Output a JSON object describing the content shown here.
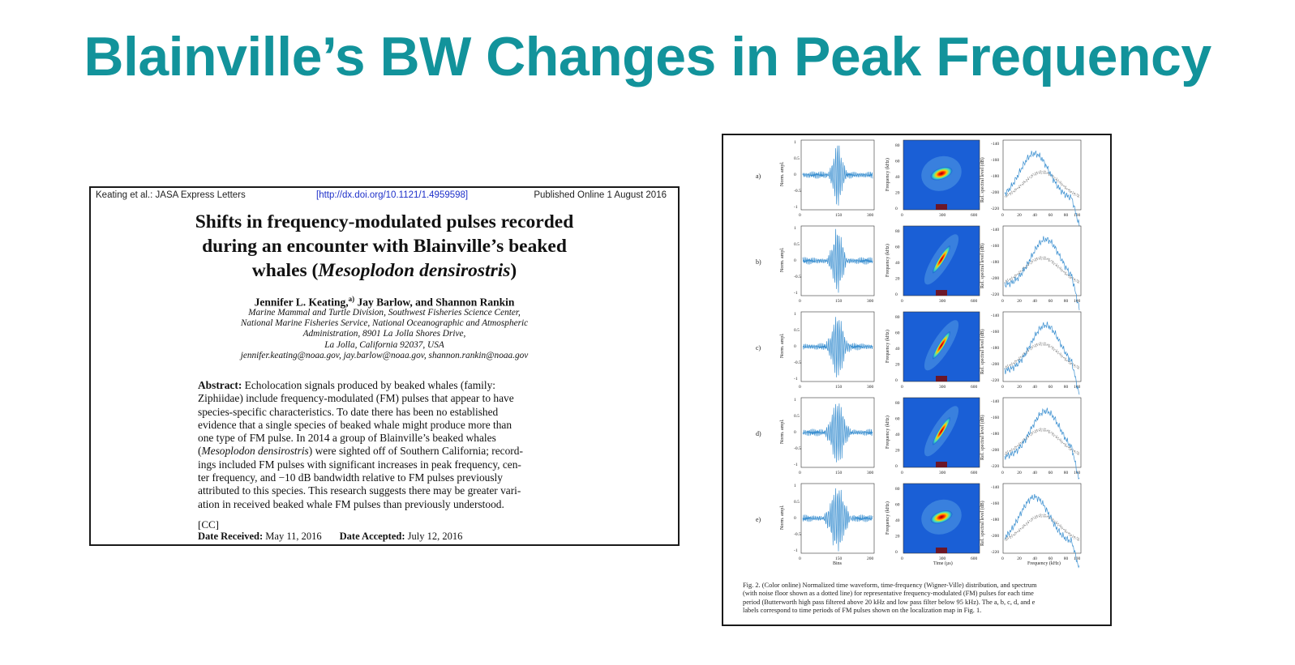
{
  "slide": {
    "title": "Blainville’s BW Changes in Peak Frequency"
  },
  "paper": {
    "journal": "Keating et al.: JASA Express Letters",
    "doi": "[http://dx.doi.org/10.1121/1.4959598]",
    "published": "Published Online  1 August 2016",
    "title_lines": [
      "Shifts in frequency-modulated pulses recorded",
      "during an encounter with Blainville’s beaked",
      "whales (Mesoplodon densirostris)"
    ],
    "authors": "Jennifer L. Keating,",
    "author_note": "a)",
    "authors_rest": " Jay Barlow, and Shannon Rankin",
    "affiliation_lines": [
      "Marine Mammal and Turtle Division, Southwest Fisheries Science Center,",
      "National Marine Fisheries Service, National Oceanographic and Atmospheric",
      "Administration, 8901 La Jolla Shores Drive,",
      "La Jolla, California 92037, USA",
      "jennifer.keating@noaa.gov, jay.barlow@noaa.gov, shannon.rankin@noaa.gov"
    ],
    "abstract_label": "Abstract:",
    "abstract_lines": [
      " Echolocation signals produced by beaked whales (family:",
      "Ziphiidae) include frequency-modulated (FM) pulses that appear to have",
      "species-specific characteristics. To date there has been no established",
      "evidence that a single species of beaked whale might produce more than",
      "one type of FM pulse. In 2014 a group of Blainville’s beaked whales",
      "(Mesoplodon densirostris) were sighted off of Southern California; record-",
      "ings included FM pulses with significant increases in peak frequency, cen-",
      "ter frequency, and −10 dB bandwidth relative to FM pulses previously",
      "attributed to this species. This research suggests there may be greater vari-",
      "ation in received beaked whale FM pulses than previously understood."
    ],
    "cc": "[CC]",
    "received_label": "Date Received:",
    "received": " May 11, 2016",
    "accepted_label": "Date Accepted:",
    "accepted": "  July 12, 2016"
  },
  "figure": {
    "row_labels": [
      "a)",
      "b)",
      "c)",
      "d)",
      "e)"
    ],
    "waveform_ylabel": "Norm. ampl.",
    "waveform_yticks": [
      "1",
      "0.5",
      "0",
      "-0.5",
      "-1"
    ],
    "waveform_xticks": [
      "0",
      "150",
      "300"
    ],
    "waveform_xticks_last": [
      "0",
      "150",
      "200"
    ],
    "waveform_xlabel": "Bins",
    "tf_ylabel": "Frequency (kHz)",
    "tf_yticks": [
      "80",
      "60",
      "40",
      "20",
      "0"
    ],
    "tf_xticks": [
      "0",
      "300",
      "600"
    ],
    "tf_xlabel": "Time (µs)",
    "spec_ylabel": "Rel. spectral level (dB)",
    "spec_yticks": [
      "-140",
      "-160",
      "-180",
      "-200",
      "-220"
    ],
    "spec_xticks": [
      "0",
      "20",
      "40",
      "60",
      "80",
      "100"
    ],
    "spec_xlabel": "Frequency (kHz)",
    "caption_lines": [
      "Fig. 2. (Color online) Normalized time waveform, time-frequency (Wigner-Ville) distribution, and spectrum",
      "(with noise floor shown as a dotted line) for representative frequency-modulated (FM) pulses for each time",
      "period (Butterworth high pass filtered above 20 kHz and low pass filter below 95 kHz). The a, b, c, d, and e",
      "labels correspond to time periods of FM pulses shown on the localization map in Fig. 1."
    ],
    "colors": {
      "wave": "#3a8fd0",
      "tf_bg": "#1a5fd6",
      "spectrum": "#3a8fd0",
      "noise": "#777777"
    }
  }
}
